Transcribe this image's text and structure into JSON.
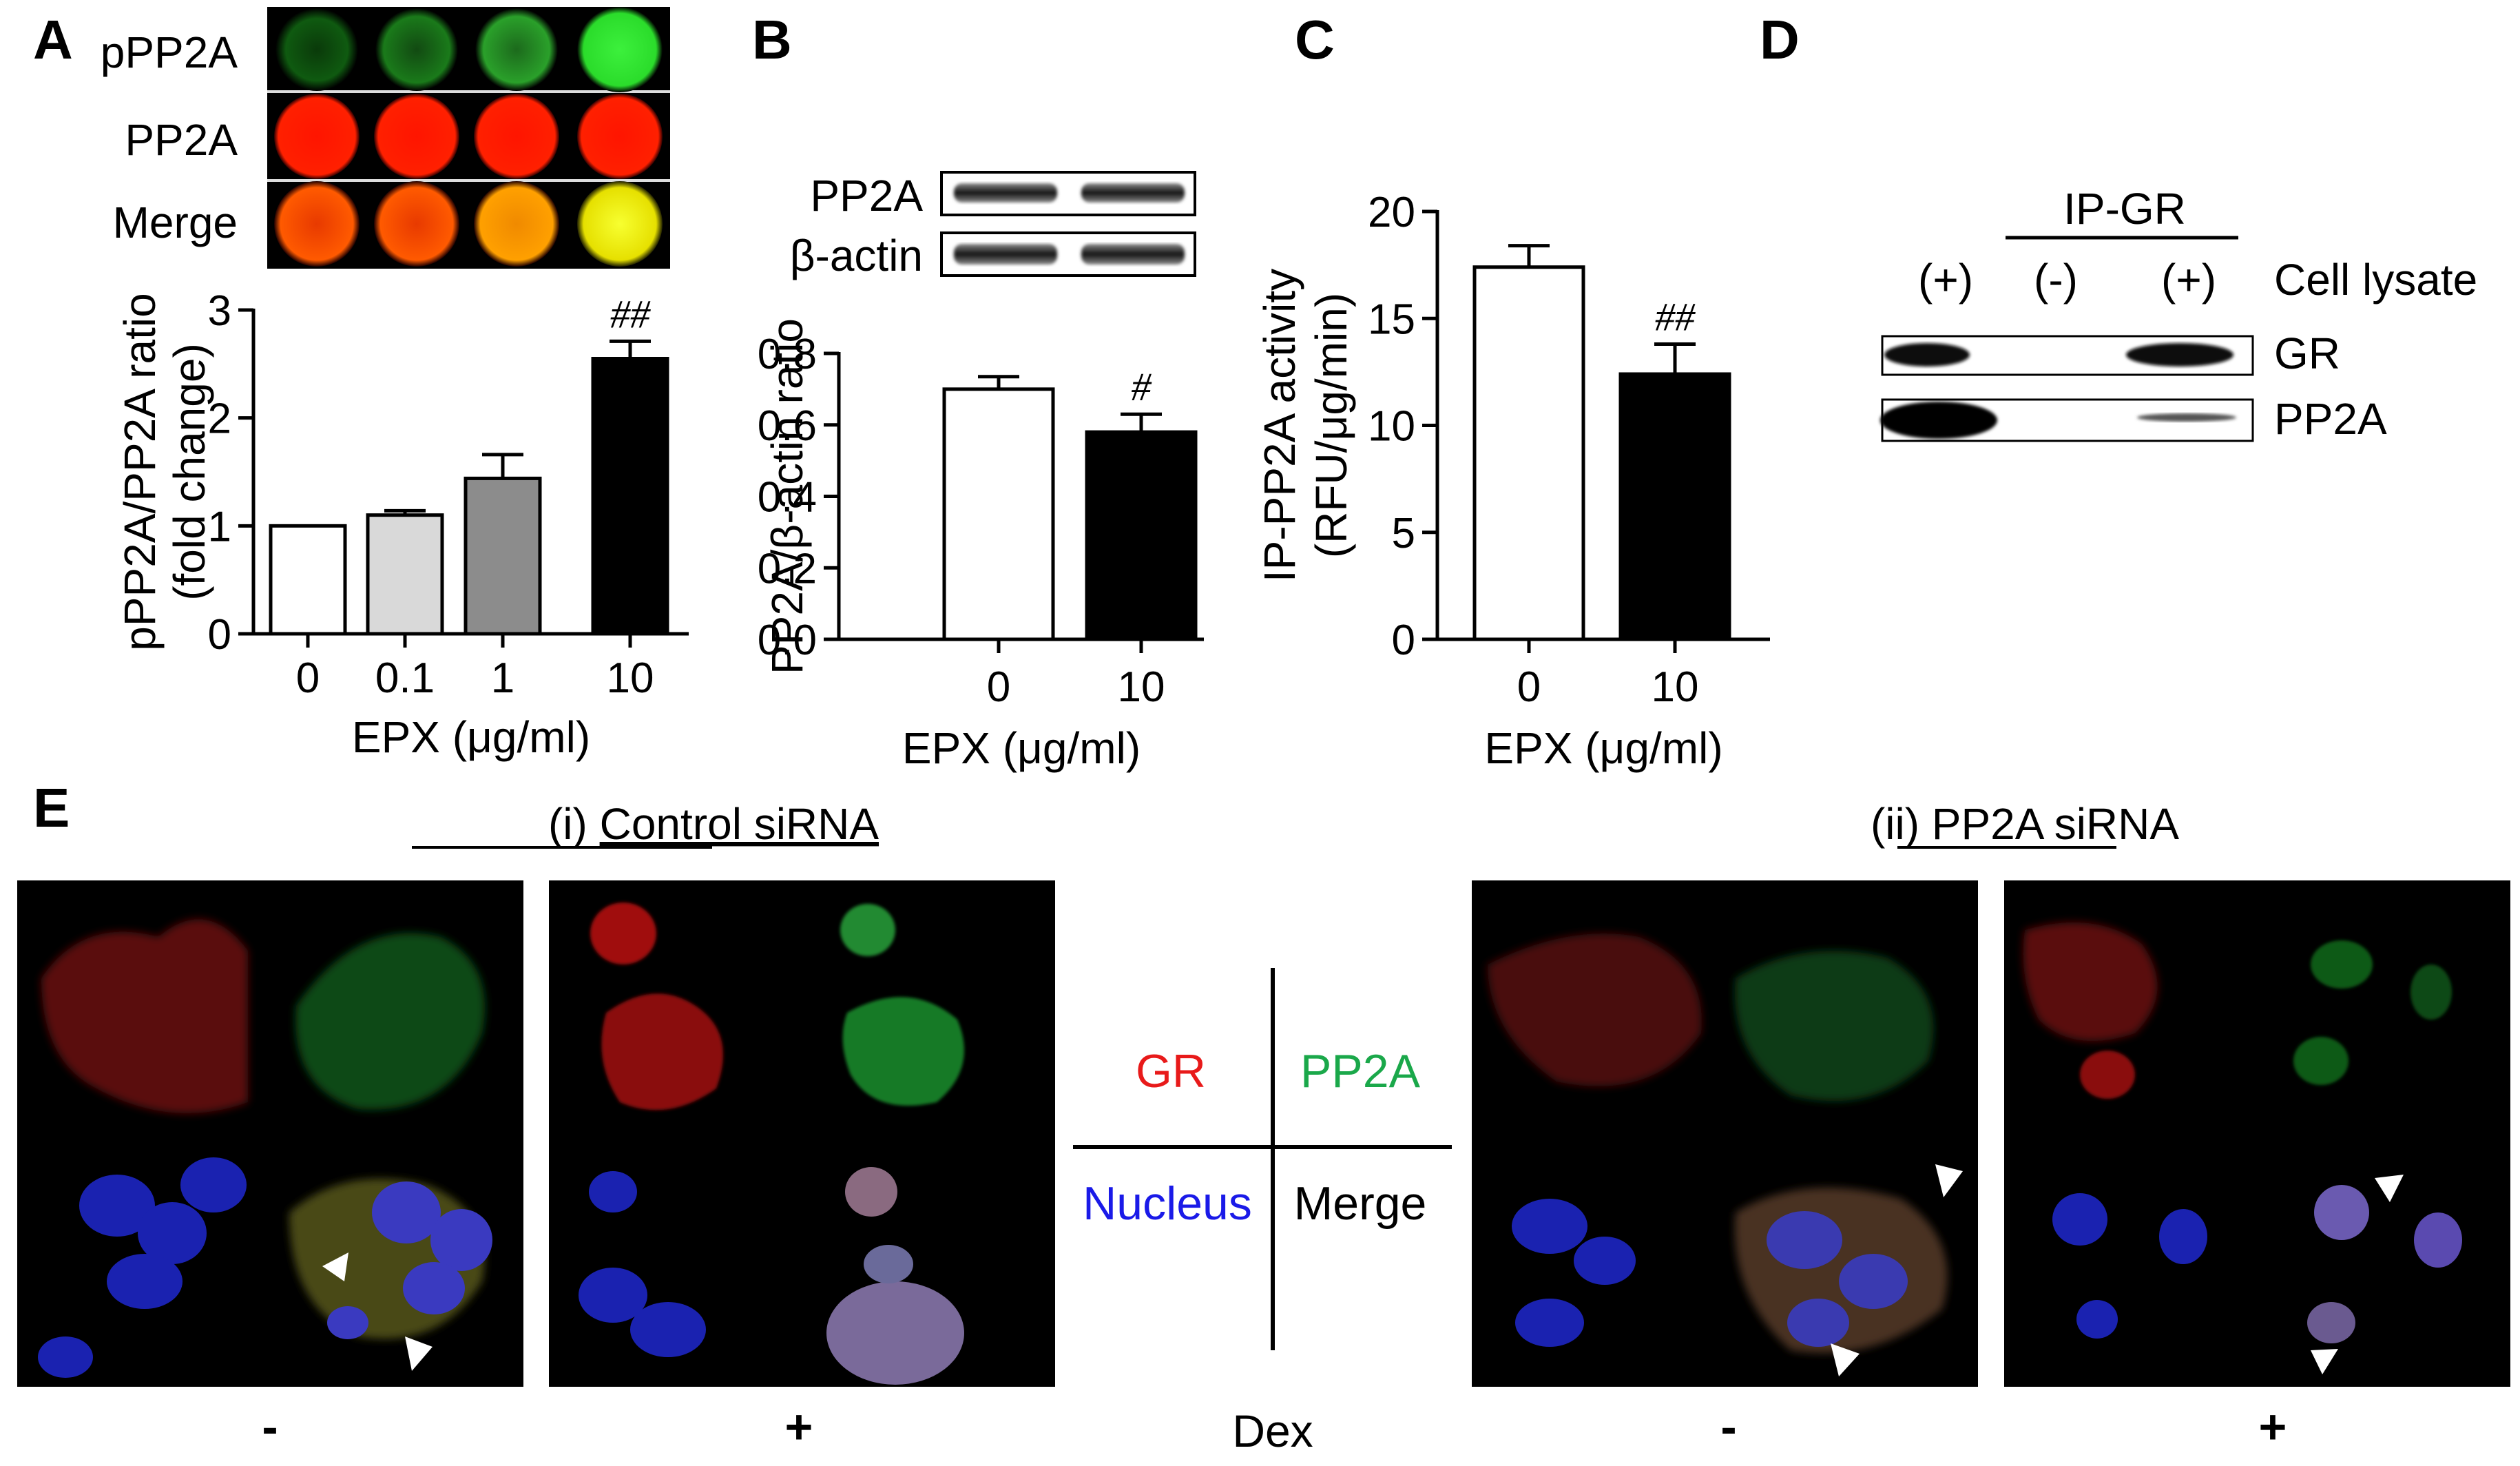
{
  "panels": {
    "a": "A",
    "b": "B",
    "c": "C",
    "d": "D",
    "e": "E"
  },
  "panel_a": {
    "row_labels": [
      "pPP2A",
      "PP2A",
      "Merge"
    ],
    "row_colors": [
      "#1fd11f",
      "#ff1a00",
      "#ff6a00"
    ]
  },
  "panel_b_blot": {
    "labels": [
      "PP2A",
      "β-actin"
    ]
  },
  "panel_d": {
    "ip_label": "IP-GR",
    "lanes": [
      "(+)",
      "(-)",
      "(+)"
    ],
    "lane_header": "Cell lysate",
    "rows": [
      "GR",
      "PP2A"
    ]
  },
  "panel_e": {
    "title_i_prefix": "(i) ",
    "title_i": "Control siRNA",
    "title_ii_prefix": "(ii) ",
    "title_ii": "PP2A siRNA",
    "legend": {
      "tl": "GR",
      "tr": "PP2A",
      "bl": "Nucleus",
      "br": "Merge"
    },
    "legend_colors": {
      "gr": "#e81a1a",
      "pp2a": "#1aa84a",
      "nucleus": "#1a1ae8"
    },
    "treatments": [
      "-",
      "+",
      "-",
      "+"
    ],
    "treatment_axis": "Dex"
  },
  "chart_data": [
    {
      "type": "bar",
      "ylabel": "pPP2A/PP2A ratio (fold change)",
      "ylabel_lines": [
        "pPP2A/PP2A ratio",
        "(fold change)"
      ],
      "xlabel": "EPX (μg/ml)",
      "categories": [
        "0",
        "0.1",
        "1",
        "10"
      ],
      "values": [
        1.0,
        1.1,
        1.44,
        2.55
      ],
      "errors": [
        0.0,
        0.04,
        0.22,
        0.16
      ],
      "bar_colors": [
        "#ffffff",
        "#d9d9d9",
        "#8c8c8c",
        "#000000"
      ],
      "significance": [
        "",
        "",
        "",
        "##"
      ],
      "ylim": [
        0,
        3
      ],
      "yticks": [
        "0",
        "1",
        "2",
        "3"
      ]
    },
    {
      "type": "bar",
      "ylabel": "PP2A/β-actin ratio",
      "xlabel": "EPX (μg/ml)",
      "categories": [
        "0",
        "10"
      ],
      "values": [
        0.7,
        0.58
      ],
      "errors": [
        0.035,
        0.05
      ],
      "bar_colors": [
        "#ffffff",
        "#000000"
      ],
      "significance": [
        "",
        "#"
      ],
      "ylim": [
        0,
        0.8
      ],
      "yticks": [
        "0.0",
        "0.2",
        "0.4",
        "0.6",
        "0.8"
      ]
    },
    {
      "type": "bar",
      "ylabel": "IP-PP2A activity (RFU/μg/min)",
      "ylabel_lines": [
        "IP-PP2A activity",
        "(RFU/μg/min)"
      ],
      "xlabel": "EPX (μg/ml)",
      "categories": [
        "0",
        "10"
      ],
      "values": [
        17.4,
        12.4
      ],
      "errors": [
        1.0,
        1.4
      ],
      "bar_colors": [
        "#ffffff",
        "#000000"
      ],
      "significance": [
        "",
        "##"
      ],
      "ylim": [
        0,
        20
      ],
      "yticks": [
        "0",
        "5",
        "10",
        "15",
        "20"
      ]
    }
  ]
}
